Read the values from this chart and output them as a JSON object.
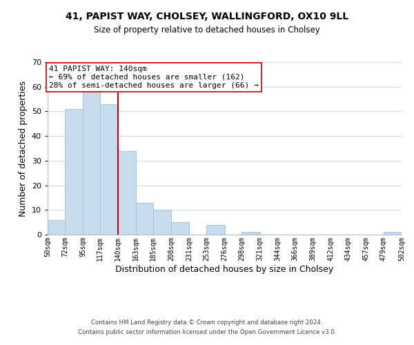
{
  "title": "41, PAPIST WAY, CHOLSEY, WALLINGFORD, OX10 9LL",
  "subtitle": "Size of property relative to detached houses in Cholsey",
  "xlabel": "Distribution of detached houses by size in Cholsey",
  "ylabel": "Number of detached properties",
  "bar_edges": [
    50,
    72,
    95,
    117,
    140,
    163,
    185,
    208,
    231,
    253,
    276,
    298,
    321,
    344,
    366,
    389,
    412,
    434,
    457,
    479,
    502
  ],
  "bar_heights": [
    6,
    51,
    58,
    53,
    34,
    13,
    10,
    5,
    0,
    4,
    0,
    1,
    0,
    0,
    0,
    0,
    0,
    0,
    0,
    1
  ],
  "bar_color": "#c8dcf0",
  "bar_edgecolor": "#a8c4dc",
  "vline_x": 140,
  "vline_color": "#cc0000",
  "ylim": [
    0,
    70
  ],
  "yticks": [
    0,
    10,
    20,
    30,
    40,
    50,
    60,
    70
  ],
  "annotation_text": "41 PAPIST WAY: 140sqm\n← 69% of detached houses are smaller (162)\n28% of semi-detached houses are larger (66) →",
  "annotation_box_edgecolor": "#cc0000",
  "annotation_box_facecolor": "#ffffff",
  "footer_line1": "Contains HM Land Registry data © Crown copyright and database right 2024.",
  "footer_line2": "Contains public sector information licensed under the Open Government Licence v3.0.",
  "tick_labels": [
    "50sqm",
    "72sqm",
    "95sqm",
    "117sqm",
    "140sqm",
    "163sqm",
    "185sqm",
    "208sqm",
    "231sqm",
    "253sqm",
    "276sqm",
    "298sqm",
    "321sqm",
    "344sqm",
    "366sqm",
    "389sqm",
    "412sqm",
    "434sqm",
    "457sqm",
    "479sqm",
    "502sqm"
  ]
}
